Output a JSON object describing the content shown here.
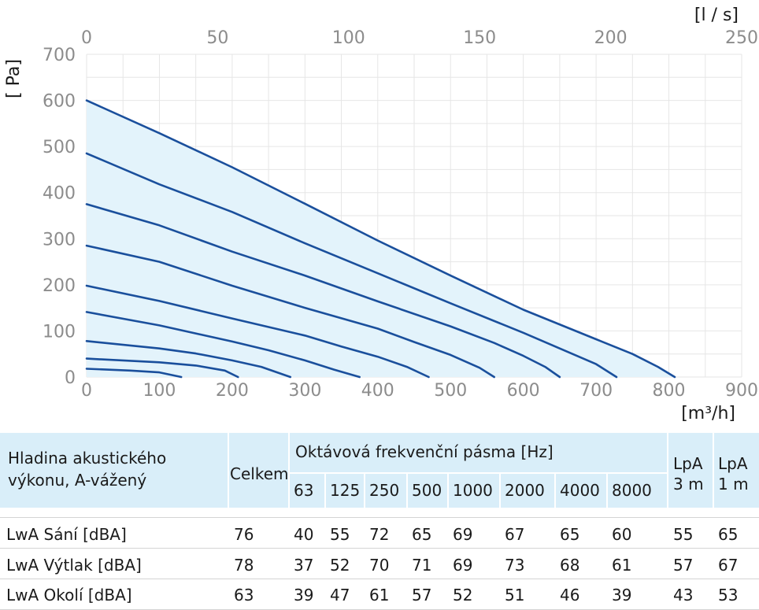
{
  "chart_data": {
    "type": "line",
    "x_bottom_label": "[m³/h]",
    "x_top_label": "[l / s]",
    "ylabel": "[ Pa]",
    "x_bottom_ticks": [
      "0",
      "100",
      "200",
      "300",
      "400",
      "500",
      "600",
      "700",
      "800",
      "900"
    ],
    "x_top_ticks": [
      "0",
      "50",
      "100",
      "150",
      "200",
      "250"
    ],
    "y_ticks": [
      "0",
      "100",
      "200",
      "300",
      "400",
      "500",
      "600",
      "700"
    ],
    "xlim": [
      0,
      900
    ],
    "ylim": [
      0,
      700
    ],
    "grid": true,
    "colors": {
      "curve": "#1a4f9c",
      "fill": "#e3f3fb",
      "grid": "#e6e6e6"
    },
    "series": [
      {
        "points": [
          [
            0,
            600
          ],
          [
            100,
            529
          ],
          [
            200,
            455
          ],
          [
            300,
            376
          ],
          [
            400,
            296
          ],
          [
            500,
            220
          ],
          [
            600,
            146
          ],
          [
            700,
            82
          ],
          [
            750,
            50
          ],
          [
            785,
            22
          ],
          [
            808,
            0
          ]
        ]
      },
      {
        "points": [
          [
            0,
            485
          ],
          [
            100,
            418
          ],
          [
            200,
            358
          ],
          [
            300,
            290
          ],
          [
            400,
            225
          ],
          [
            500,
            160
          ],
          [
            600,
            96
          ],
          [
            650,
            62
          ],
          [
            700,
            28
          ],
          [
            728,
            0
          ]
        ]
      },
      {
        "points": [
          [
            0,
            375
          ],
          [
            100,
            329
          ],
          [
            200,
            272
          ],
          [
            300,
            220
          ],
          [
            400,
            164
          ],
          [
            500,
            110
          ],
          [
            560,
            74
          ],
          [
            600,
            46
          ],
          [
            630,
            22
          ],
          [
            650,
            0
          ]
        ]
      },
      {
        "points": [
          [
            0,
            285
          ],
          [
            100,
            250
          ],
          [
            200,
            198
          ],
          [
            300,
            150
          ],
          [
            400,
            105
          ],
          [
            450,
            76
          ],
          [
            500,
            48
          ],
          [
            540,
            20
          ],
          [
            560,
            0
          ]
        ]
      },
      {
        "points": [
          [
            0,
            198
          ],
          [
            100,
            165
          ],
          [
            200,
            127
          ],
          [
            300,
            90
          ],
          [
            350,
            66
          ],
          [
            400,
            44
          ],
          [
            440,
            22
          ],
          [
            470,
            0
          ]
        ]
      },
      {
        "points": [
          [
            0,
            141
          ],
          [
            100,
            112
          ],
          [
            200,
            77
          ],
          [
            250,
            58
          ],
          [
            300,
            36
          ],
          [
            340,
            16
          ],
          [
            375,
            0
          ]
        ]
      },
      {
        "points": [
          [
            0,
            78
          ],
          [
            100,
            62
          ],
          [
            150,
            51
          ],
          [
            200,
            36
          ],
          [
            240,
            22
          ],
          [
            280,
            0
          ]
        ]
      },
      {
        "points": [
          [
            0,
            40
          ],
          [
            100,
            32
          ],
          [
            150,
            25
          ],
          [
            190,
            14
          ],
          [
            208,
            0
          ]
        ]
      },
      {
        "points": [
          [
            0,
            18
          ],
          [
            60,
            14
          ],
          [
            100,
            10
          ],
          [
            130,
            0
          ]
        ]
      }
    ]
  },
  "table": {
    "row_label_header": "Hladina akustického výkonu, A-vážený",
    "total_header": "Celkem",
    "octave_header": "Oktávová frekvenční pásma [Hz]",
    "frequencies": [
      "63",
      "125",
      "250",
      "500",
      "1000",
      "2000",
      "4000",
      "8000"
    ],
    "lpa3_header": "LpA 3 m",
    "lpa1_header": "LpA 1 m",
    "rows": [
      {
        "label": "LwA Sání [dBA]",
        "total": "76",
        "bands": [
          "40",
          "55",
          "72",
          "65",
          "69",
          "67",
          "65",
          "60"
        ],
        "lpa3": "55",
        "lpa1": "65"
      },
      {
        "label": "LwA Výtlak [dBA]",
        "total": "78",
        "bands": [
          "37",
          "52",
          "70",
          "71",
          "69",
          "73",
          "68",
          "61"
        ],
        "lpa3": "57",
        "lpa1": "67"
      },
      {
        "label": "LwA Okolí [dBA]",
        "total": "63",
        "bands": [
          "39",
          "47",
          "61",
          "57",
          "52",
          "51",
          "46",
          "39"
        ],
        "lpa3": "43",
        "lpa1": "53"
      }
    ]
  }
}
